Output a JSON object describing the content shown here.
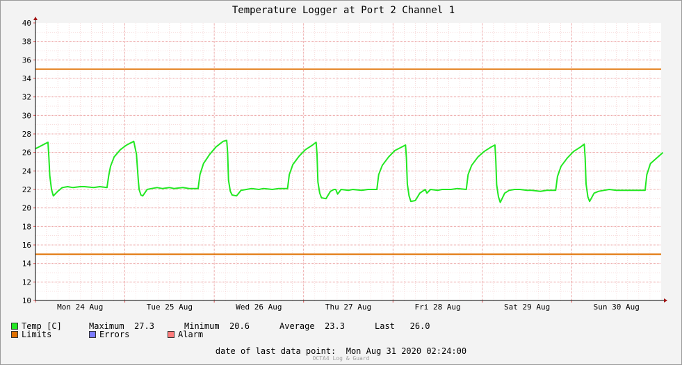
{
  "chart_data": {
    "type": "line",
    "title": "Temperature Logger at Port 2 Channel 1",
    "xlabel": "",
    "ylabel": "",
    "ylim": [
      10,
      40
    ],
    "yticks": [
      10,
      12,
      14,
      16,
      18,
      20,
      22,
      24,
      26,
      28,
      30,
      32,
      34,
      36,
      38,
      40
    ],
    "x_tick_labels": [
      "Mon 24 Aug",
      "Tue 25 Aug",
      "Wed 26 Aug",
      "Thu 27 Aug",
      "Fri 28 Aug",
      "Sat 29 Aug",
      "Sun 30 Aug"
    ],
    "xlim_days": [
      0,
      7
    ],
    "grid": true,
    "limits": {
      "upper": 35,
      "lower": 15,
      "color": "#e07000"
    },
    "series": [
      {
        "name": "Temp [C]",
        "color": "#22e822",
        "x_days": [
          0.0,
          0.14,
          0.15,
          0.16,
          0.18,
          0.2,
          0.25,
          0.3,
          0.36,
          0.42,
          0.5,
          0.55,
          0.65,
          0.72,
          0.8,
          0.82,
          0.84,
          0.88,
          0.95,
          1.02,
          1.1,
          1.13,
          1.15,
          1.16,
          1.18,
          1.2,
          1.25,
          1.3,
          1.36,
          1.42,
          1.5,
          1.55,
          1.65,
          1.72,
          1.82,
          1.84,
          1.88,
          1.95,
          2.02,
          2.1,
          2.14,
          2.15,
          2.16,
          2.18,
          2.2,
          2.25,
          2.3,
          2.36,
          2.42,
          2.5,
          2.55,
          2.65,
          2.72,
          2.82,
          2.84,
          2.88,
          2.95,
          3.02,
          3.1,
          3.14,
          3.15,
          3.16,
          3.18,
          3.2,
          3.25,
          3.3,
          3.34,
          3.36,
          3.38,
          3.42,
          3.5,
          3.55,
          3.65,
          3.72,
          3.82,
          3.84,
          3.88,
          3.95,
          4.02,
          4.1,
          4.14,
          4.15,
          4.16,
          4.18,
          4.2,
          4.25,
          4.3,
          4.36,
          4.38,
          4.42,
          4.5,
          4.55,
          4.65,
          4.72,
          4.82,
          4.84,
          4.88,
          4.95,
          5.02,
          5.1,
          5.14,
          5.15,
          5.16,
          5.18,
          5.2,
          5.25,
          5.3,
          5.36,
          5.42,
          5.5,
          5.55,
          5.65,
          5.72,
          5.82,
          5.84,
          5.88,
          5.95,
          6.02,
          6.1,
          6.14,
          6.15,
          6.16,
          6.18,
          6.2,
          6.25,
          6.3,
          6.36,
          6.42,
          6.5,
          6.55,
          6.65,
          6.72,
          6.82,
          6.84,
          6.88,
          6.95,
          7.02
        ],
        "values": [
          26.4,
          27.1,
          25.5,
          23.5,
          22.0,
          21.3,
          21.8,
          22.2,
          22.3,
          22.2,
          22.3,
          22.3,
          22.2,
          22.3,
          22.2,
          23.5,
          24.5,
          25.5,
          26.3,
          26.8,
          27.2,
          25.8,
          23.0,
          22.0,
          21.4,
          21.3,
          22.0,
          22.1,
          22.2,
          22.1,
          22.2,
          22.1,
          22.2,
          22.1,
          22.1,
          23.6,
          24.8,
          25.8,
          26.6,
          27.2,
          27.3,
          26.0,
          23.0,
          21.8,
          21.4,
          21.3,
          21.9,
          22.0,
          22.1,
          22.0,
          22.1,
          22.0,
          22.1,
          22.1,
          23.6,
          24.7,
          25.6,
          26.3,
          26.8,
          27.1,
          25.8,
          22.8,
          21.6,
          21.1,
          21.0,
          21.8,
          22.0,
          22.0,
          21.5,
          22.0,
          21.9,
          22.0,
          21.9,
          22.0,
          22.0,
          23.6,
          24.6,
          25.5,
          26.2,
          26.6,
          26.8,
          25.4,
          22.6,
          21.3,
          20.7,
          20.8,
          21.6,
          22.0,
          21.6,
          22.0,
          21.9,
          22.0,
          22.0,
          22.1,
          22.0,
          23.6,
          24.6,
          25.5,
          26.1,
          26.6,
          26.8,
          25.3,
          22.5,
          21.2,
          20.6,
          21.6,
          21.9,
          22.0,
          22.0,
          21.9,
          21.9,
          21.8,
          21.9,
          21.9,
          23.4,
          24.5,
          25.4,
          26.1,
          26.6,
          26.9,
          25.4,
          22.6,
          21.2,
          20.7,
          21.6,
          21.8,
          21.9,
          22.0,
          21.9,
          21.9,
          21.9,
          21.9,
          21.9,
          23.6,
          24.8,
          25.4,
          26.0
        ]
      }
    ]
  },
  "legend": {
    "temp": {
      "label": "Temp [C]",
      "color": "#22e822"
    },
    "limits": {
      "label": "Limits",
      "color": "#e07000"
    },
    "errors": {
      "label": "Errors",
      "color": "#7b7bff"
    },
    "alarm": {
      "label": "Alarm",
      "color": "#ff7b7b"
    },
    "stats": {
      "maximum_label": "Maximum",
      "maximum_value": "27.3",
      "minimum_label": "Minimum",
      "minimum_value": "20.6",
      "average_label": "Average",
      "average_value": "23.3",
      "last_label": "Last",
      "last_value": "26.0"
    }
  },
  "footer": {
    "label": "date of last data point:",
    "value": "Mon Aug 31 2020 02:24:00"
  },
  "watermark": "OCTA4 Log & Guard"
}
